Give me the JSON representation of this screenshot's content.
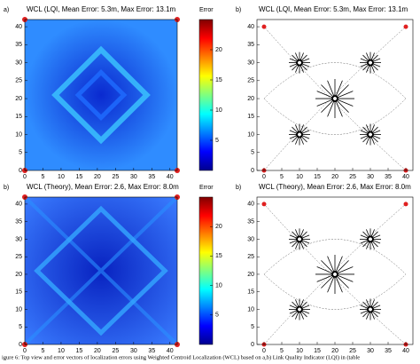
{
  "panels": [
    {
      "kind": "heatmap",
      "label": "a)",
      "title": "WCL (LQI, Mean Error: 5.3m, Max Error: 13.1m",
      "xlim": [
        0,
        42
      ],
      "ylim": [
        0,
        42
      ],
      "xticks": [
        0,
        5,
        10,
        15,
        20,
        25,
        30,
        35,
        40
      ],
      "yticks": [
        0,
        5,
        10,
        15,
        20,
        25,
        30,
        35,
        40
      ],
      "colorbar": {
        "title": "Error",
        "lim": [
          0,
          25
        ],
        "ticks": [
          5,
          10,
          15,
          20
        ]
      }
    },
    {
      "kind": "vectors",
      "label": "b)",
      "title": "WCL (LQI, Mean Error: 5.3m, Max Error: 13.1m",
      "xlim": [
        -2,
        42
      ],
      "ylim": [
        0,
        42
      ],
      "xticks": [
        0,
        5,
        10,
        15,
        20,
        25,
        30,
        35,
        40
      ],
      "yticks": [
        0,
        5,
        10,
        15,
        20,
        25,
        30,
        35,
        40
      ]
    },
    {
      "kind": "heatmap",
      "label": "b)",
      "title": "WCL (Theory), Mean Error: 2.6, Max Error: 8.0m",
      "xlim": [
        0,
        42
      ],
      "ylim": [
        0,
        42
      ],
      "xticks": [
        0,
        5,
        10,
        15,
        20,
        25,
        30,
        35,
        40
      ],
      "yticks": [
        0,
        5,
        10,
        15,
        20,
        25,
        30,
        35,
        40
      ],
      "colorbar": {
        "title": "Error",
        "lim": [
          0,
          25
        ],
        "ticks": [
          5,
          10,
          15,
          20
        ]
      }
    },
    {
      "kind": "vectors",
      "label": "b)",
      "title": "WCL (Theory), Mean Error: 2.6, Max Error: 8.0m",
      "xlim": [
        -2,
        42
      ],
      "ylim": [
        0,
        42
      ],
      "xticks": [
        0,
        5,
        10,
        15,
        20,
        25,
        30,
        35,
        40
      ],
      "yticks": [
        0,
        5,
        10,
        15,
        20,
        25,
        30,
        35,
        40
      ]
    }
  ],
  "caption": "igure 6: Top view and error vectors of localization errors using Weighted Centroid Localization (WCL) based on a,b) Link Quality Indicator (LQI) in (table"
}
